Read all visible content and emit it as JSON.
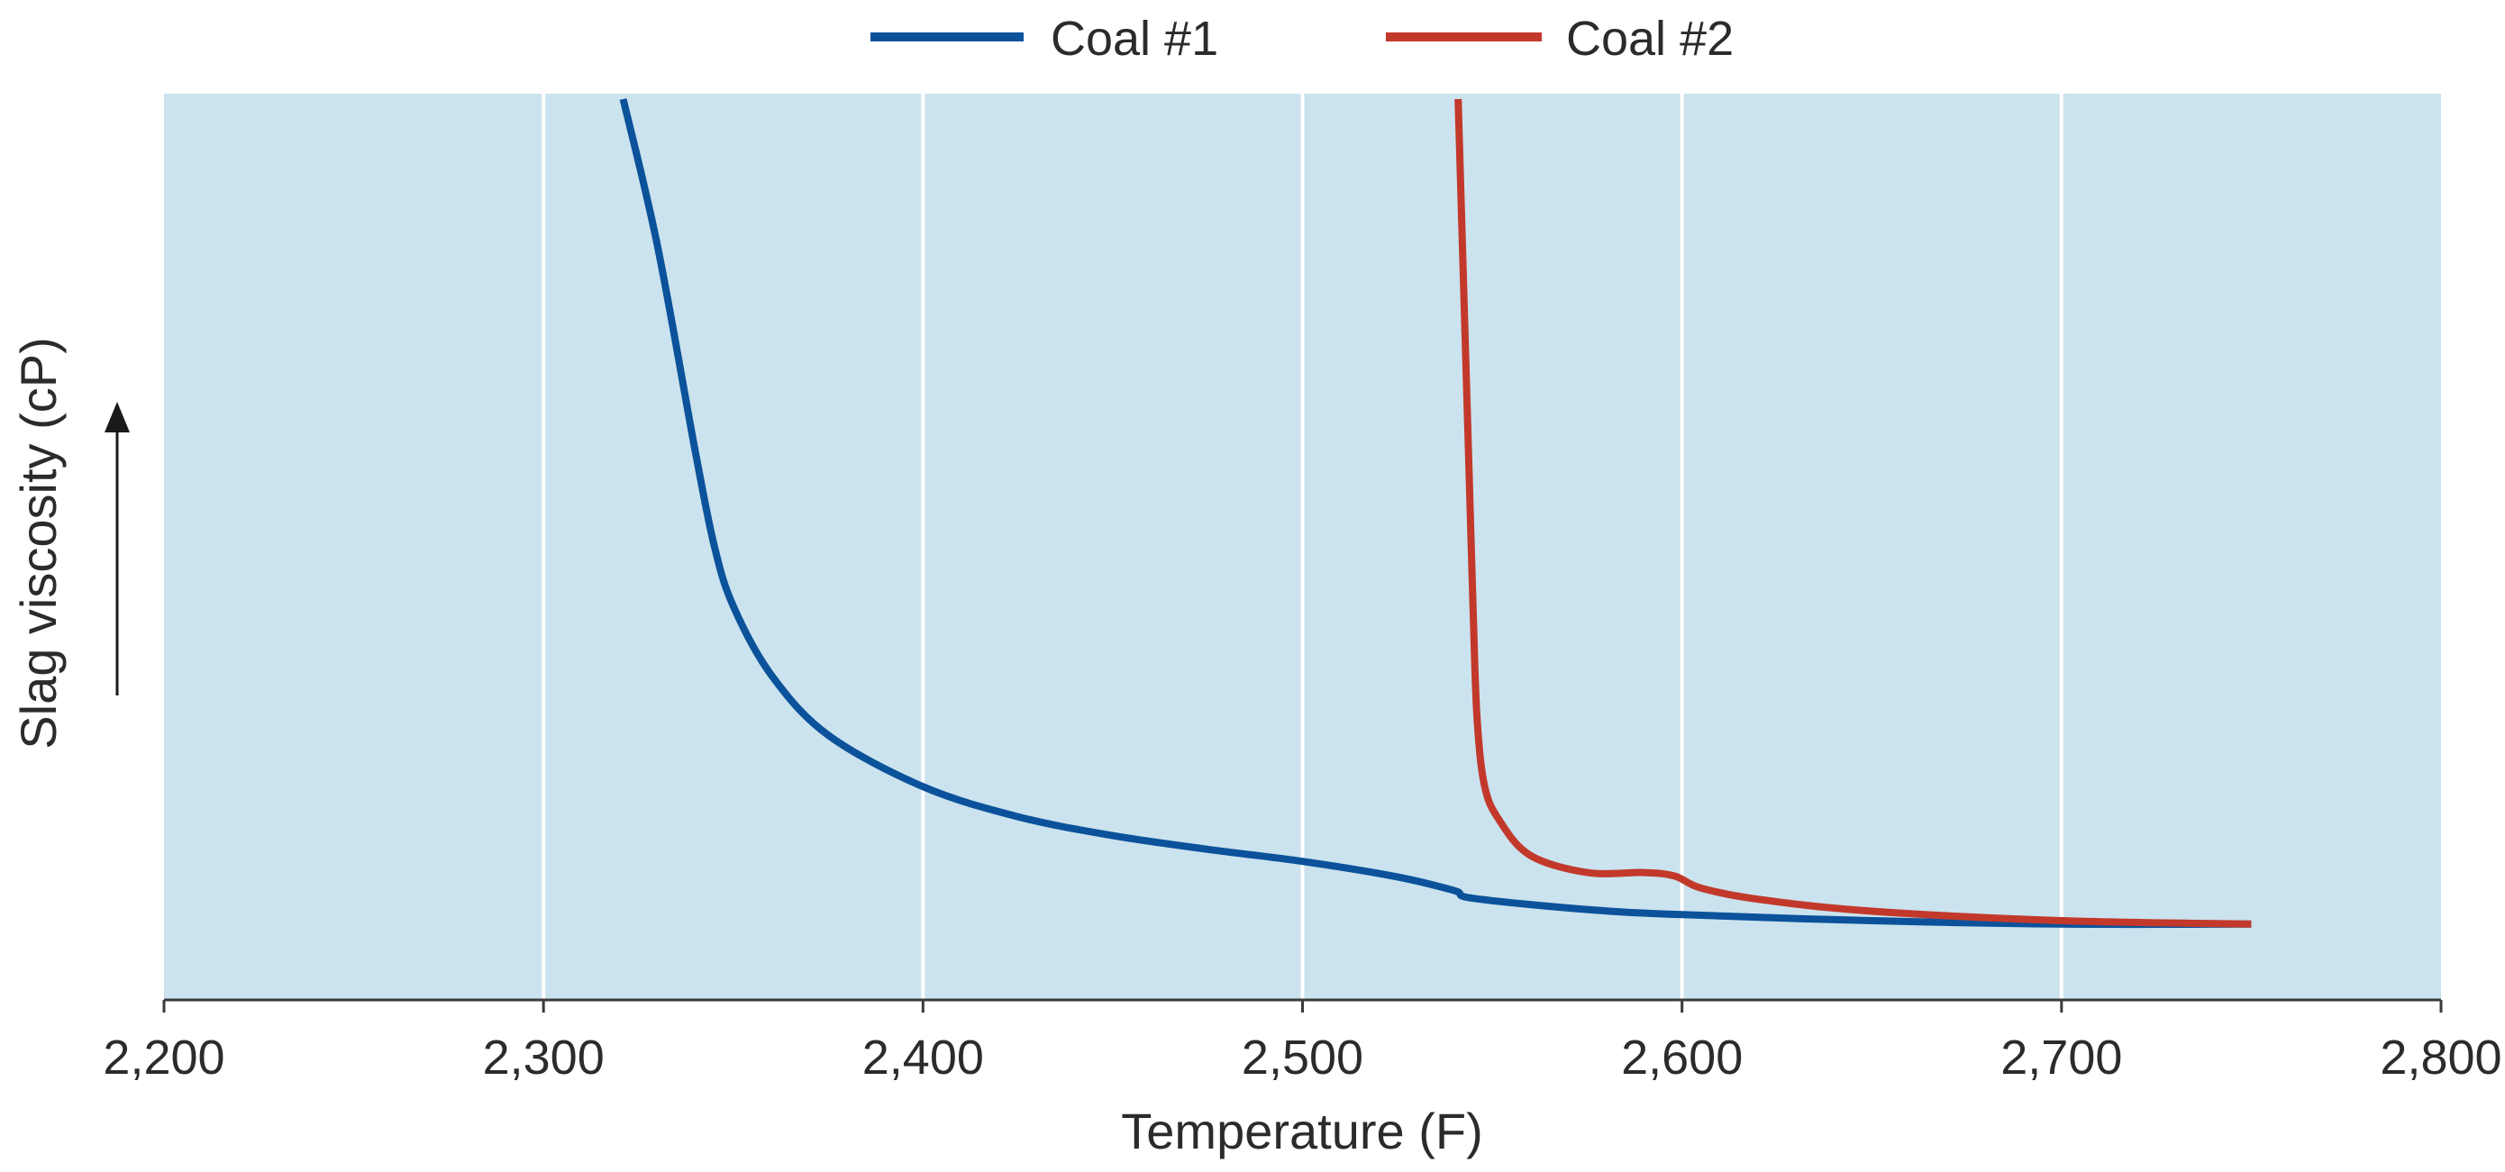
{
  "colors": {
    "plot_background": "#cbe3ee",
    "gridline": "#ffffff",
    "axis": "#3a3a3a",
    "text": "#2b2b2b"
  },
  "chart_data": {
    "type": "line",
    "title": "",
    "xlabel": "Temperature (F)",
    "ylabel": "Slag viscosity (cP)",
    "xlim": [
      2200,
      2800
    ],
    "ylim": [
      0,
      100
    ],
    "y_units_note": "relative (no y tick labels shown)",
    "x_ticks": [
      2200,
      2300,
      2400,
      2500,
      2600,
      2700,
      2800
    ],
    "x_tick_labels": [
      "2,200",
      "2,300",
      "2,400",
      "2,500",
      "2,600",
      "2,700",
      "2,800"
    ],
    "grid": "vertical",
    "legend_position": "top-center",
    "series": [
      {
        "name": "Coal #1",
        "color": "#0b529b",
        "x": [
          2321,
          2330,
          2340,
          2345,
          2350,
          2360,
          2375,
          2400,
          2425,
          2450,
          2475,
          2500,
          2525,
          2540,
          2545,
          2575,
          2600,
          2650,
          2700,
          2750
        ],
        "y": [
          100,
          83,
          59,
          48,
          41,
          33,
          26,
          20,
          16.5,
          14.3,
          12.7,
          11.3,
          9.5,
          7.9,
          7.0,
          5.7,
          5.1,
          4.4,
          4.0,
          4.0
        ]
      },
      {
        "name": "Coal #2",
        "color": "#c2392b",
        "x": [
          2541,
          2542,
          2543,
          2544,
          2545,
          2546,
          2548,
          2552,
          2560,
          2575,
          2590,
          2598,
          2605,
          2620,
          2650,
          2700,
          2750
        ],
        "y": [
          100,
          85,
          70,
          55,
          40,
          28,
          20,
          16,
          12,
          10,
          10,
          9.6,
          8.2,
          6.9,
          5.5,
          4.4,
          4.0
        ]
      }
    ]
  }
}
